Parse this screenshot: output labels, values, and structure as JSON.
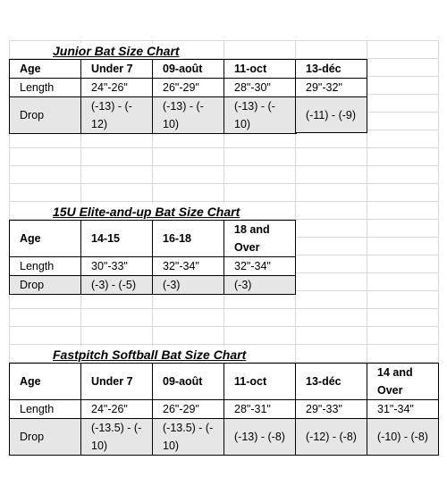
{
  "junior": {
    "title": "Junior Bat Size Chart",
    "header": [
      "Age",
      "Under 7",
      "09-août",
      "11-oct",
      "13-déc"
    ],
    "rows": [
      {
        "label": "Length",
        "cells": [
          "24\"-26\"",
          "26\"-29\"",
          "28\"-30\"",
          "29\"-32\""
        ]
      },
      {
        "label": "Drop",
        "cells": [
          "(-13) - (-",
          "12)",
          "(-13) - (-",
          "10)",
          "(-13) - (-",
          "10)",
          "(-11) - (-9)"
        ]
      }
    ]
  },
  "elite": {
    "title": "15U Elite-and-up Bat Size Chart",
    "header": [
      "Age",
      "14-15",
      "16-18",
      "18 and",
      "Over"
    ],
    "rows": [
      {
        "label": "Length",
        "cells": [
          "30\"-33\"",
          "32\"-34\"",
          "32\"-34\""
        ]
      },
      {
        "label": "Drop",
        "cells": [
          "(-3) - (-5)",
          "(-3)",
          "(-3)"
        ]
      }
    ]
  },
  "fastpitch": {
    "title": "Fastpitch Softball Bat Size Chart",
    "header": [
      "Age",
      "Under 7",
      "09-août",
      "11-oct",
      "13-déc",
      "14 and",
      "Over"
    ],
    "rows": [
      {
        "label": "Length",
        "cells": [
          "24\"-26\"",
          "26\"-29\"",
          "28\"-31\"",
          "29\"-33\"",
          "31\"-34\""
        ]
      },
      {
        "label": "Drop",
        "cells": [
          "(-13.5) - (-",
          "10)",
          "(-13.5) - (-",
          "10)",
          "(-13) - (-8)",
          "(-12) - (-8)",
          "(-10) - (-8)"
        ]
      }
    ]
  }
}
